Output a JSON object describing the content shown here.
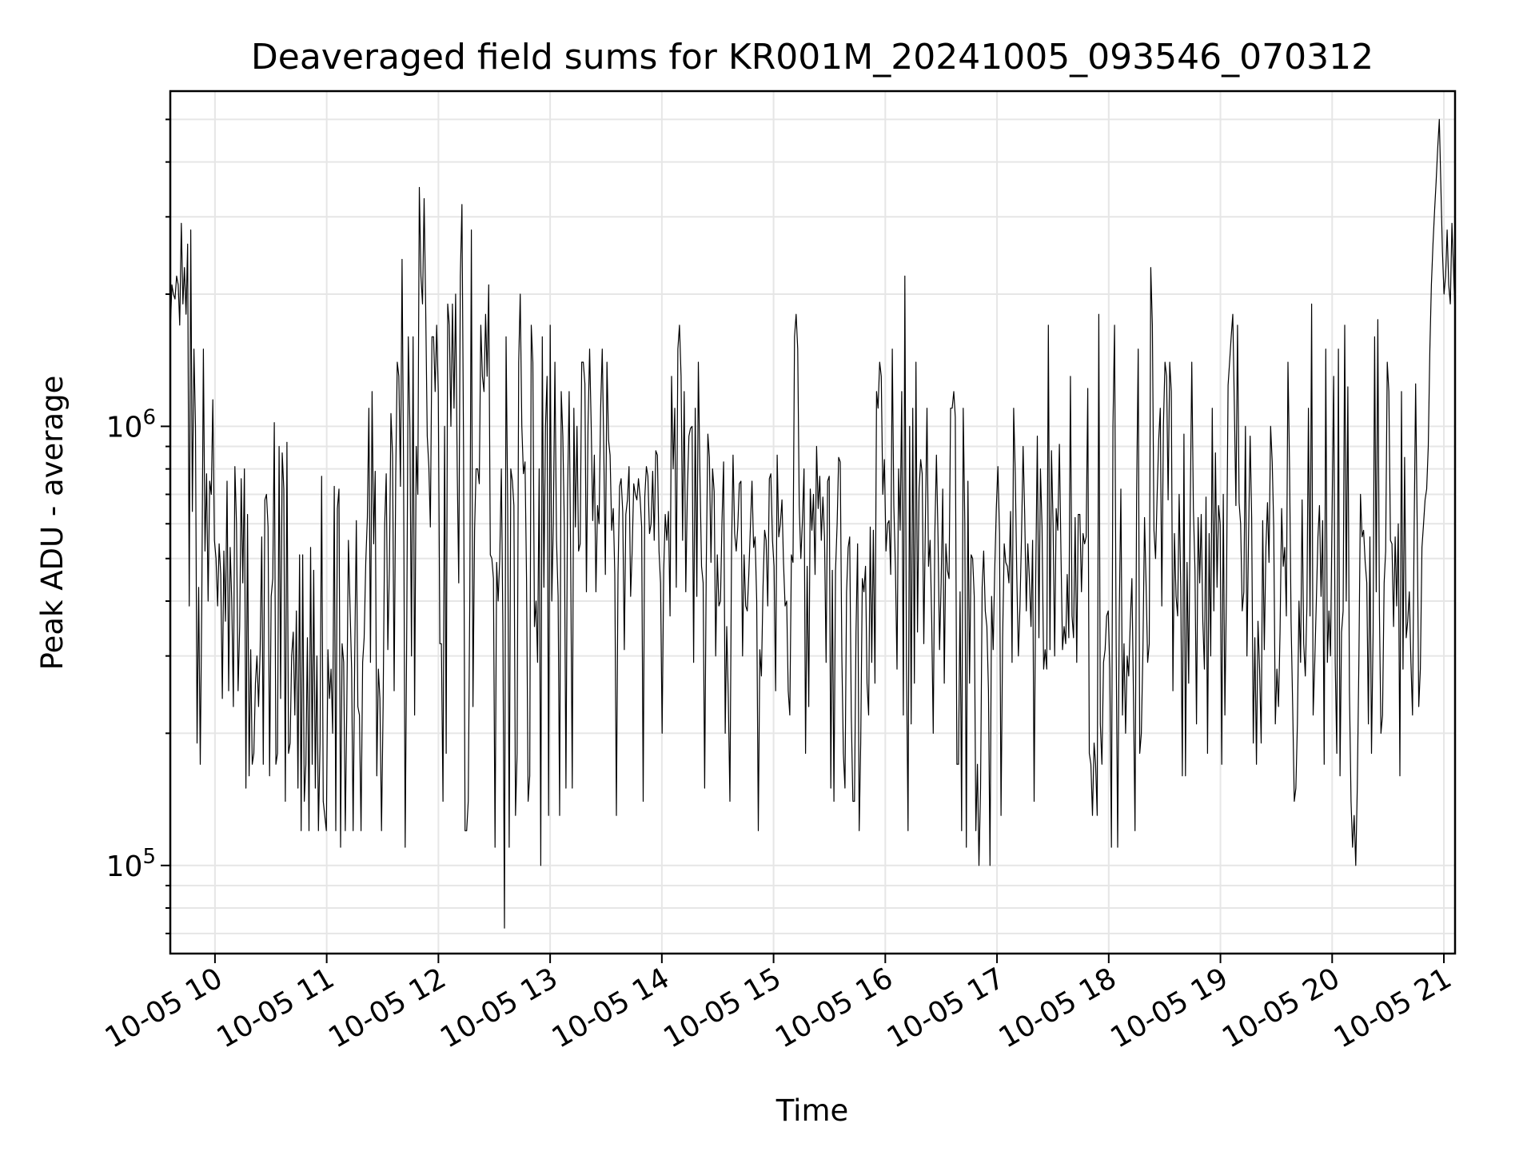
{
  "chart_data": {
    "type": "line",
    "title": "Deaveraged field sums for KR001M_20241005_093546_070312",
    "xlabel": "Time",
    "ylabel": "Peak ADU - average",
    "xscale": "time",
    "yscale": "log",
    "xlim": [
      "2024-10-05T09:36",
      "2024-10-05T21:06"
    ],
    "ylim": [
      63000,
      5800000
    ],
    "grid": true,
    "x_ticks": [
      "10-05 10",
      "10-05 11",
      "10-05 12",
      "10-05 13",
      "10-05 14",
      "10-05 15",
      "10-05 16",
      "10-05 17",
      "10-05 18",
      "10-05 19",
      "10-05 20",
      "10-05 21"
    ],
    "y_ticks": [
      {
        "value": 100000,
        "base": "10",
        "exp": "5"
      },
      {
        "value": 1000000,
        "base": "10",
        "exp": "6"
      }
    ],
    "series": [
      {
        "color": "#000000",
        "x_start": "2024-10-05T09:36",
        "x_end": "2024-10-05T21:06",
        "values": [
          1650000,
          2100000,
          2000000,
          1950000,
          2200000,
          2100000,
          1700000,
          2900000,
          1900000,
          2300000,
          1800000,
          2600000,
          390000,
          2800000,
          640000,
          1500000,
          1000000,
          190000,
          430000,
          170000,
          400000,
          1500000,
          520000,
          780000,
          400000,
          750000,
          700000,
          1150000,
          550000,
          500000,
          390000,
          540000,
          460000,
          240000,
          520000,
          360000,
          750000,
          250000,
          530000,
          400000,
          230000,
          810000,
          600000,
          250000,
          350000,
          760000,
          440000,
          800000,
          150000,
          630000,
          160000,
          310000,
          170000,
          180000,
          260000,
          300000,
          230000,
          310000,
          560000,
          170000,
          680000,
          700000,
          590000,
          160000,
          410000,
          450000,
          1020000,
          170000,
          180000,
          900000,
          240000,
          870000,
          720000,
          140000,
          920000,
          180000,
          190000,
          300000,
          340000,
          220000,
          380000,
          150000,
          510000,
          120000,
          510000,
          140000,
          170000,
          330000,
          120000,
          530000,
          170000,
          470000,
          150000,
          300000,
          120000,
          190000,
          770000,
          140000,
          130000,
          120000,
          310000,
          240000,
          280000,
          200000,
          730000,
          120000,
          650000,
          720000,
          110000,
          320000,
          290000,
          120000,
          230000,
          550000,
          390000,
          280000,
          120000,
          300000,
          610000,
          230000,
          220000,
          120000,
          290000,
          330000,
          490000,
          620000,
          1100000,
          290000,
          1200000,
          540000,
          790000,
          160000,
          280000,
          240000,
          120000,
          230000,
          600000,
          780000,
          310000,
          480000,
          1070000,
          860000,
          250000,
          780000,
          1400000,
          1300000,
          730000,
          2400000,
          790000,
          110000,
          350000,
          1600000,
          1000000,
          300000,
          1600000,
          220000,
          900000,
          700000,
          3500000,
          2200000,
          1900000,
          3300000,
          1900000,
          950000,
          810000,
          590000,
          1600000,
          1600000,
          1200000,
          1700000,
          1200000,
          320000,
          320000,
          140000,
          1000000,
          180000,
          1900000,
          1700000,
          1000000,
          1900000,
          1100000,
          2000000,
          800000,
          440000,
          2200000,
          3200000,
          900000,
          120000,
          120000,
          140000,
          400000,
          2800000,
          230000,
          580000,
          800000,
          800000,
          740000,
          1700000,
          1300000,
          1200000,
          1800000,
          1300000,
          2100000,
          510000,
          500000,
          450000,
          110000,
          490000,
          400000,
          500000,
          800000,
          350000,
          72000,
          1600000,
          660000,
          110000,
          800000,
          750000,
          660000,
          130000,
          180000,
          1400000,
          2000000,
          1000000,
          780000,
          830000,
          450000,
          140000,
          160000,
          1700000,
          1400000,
          350000,
          400000,
          290000,
          800000,
          100000,
          1600000,
          430000,
          1000000,
          1300000,
          130000,
          1700000,
          400000,
          600000,
          1400000,
          550000,
          410000,
          130000,
          1200000,
          950000,
          590000,
          150000,
          700000,
          1200000,
          500000,
          150000,
          1100000,
          590000,
          1000000,
          520000,
          540000,
          1400000,
          1400000,
          1250000,
          420000,
          1000000,
          1500000,
          1000000,
          610000,
          860000,
          420000,
          660000,
          600000,
          1100000,
          1500000,
          890000,
          460000,
          1400000,
          930000,
          860000,
          580000,
          650000,
          460000,
          130000,
          460000,
          730000,
          760000,
          640000,
          310000,
          630000,
          680000,
          810000,
          410000,
          520000,
          740000,
          700000,
          680000,
          760000,
          690000,
          590000,
          140000,
          690000,
          810000,
          770000,
          570000,
          600000,
          790000,
          550000,
          880000,
          860000,
          520000,
          440000,
          200000,
          470000,
          630000,
          550000,
          640000,
          370000,
          1300000,
          800000,
          1100000,
          430000,
          1500000,
          1700000,
          1300000,
          550000,
          1200000,
          420000,
          700000,
          950000,
          990000,
          1000000,
          290000,
          1100000,
          410000,
          1400000,
          770000,
          480000,
          440000,
          150000,
          480000,
          960000,
          850000,
          490000,
          800000,
          710000,
          300000,
          510000,
          390000,
          400000,
          610000,
          830000,
          200000,
          350000,
          240000,
          140000,
          520000,
          860000,
          570000,
          520000,
          590000,
          740000,
          750000,
          300000,
          510000,
          390000,
          380000,
          460000,
          590000,
          750000,
          530000,
          560000,
          400000,
          120000,
          310000,
          270000,
          430000,
          580000,
          550000,
          390000,
          760000,
          780000,
          550000,
          480000,
          250000,
          860000,
          560000,
          600000,
          680000,
          490000,
          390000,
          400000,
          250000,
          220000,
          510000,
          490000,
          1600000,
          1800000,
          1500000,
          660000,
          500000,
          610000,
          800000,
          180000,
          480000,
          230000,
          720000,
          580000,
          700000,
          460000,
          900000,
          650000,
          770000,
          550000,
          690000,
          560000,
          290000,
          750000,
          770000,
          150000,
          470000,
          140000,
          470000,
          600000,
          850000,
          830000,
          300000,
          180000,
          150000,
          420000,
          530000,
          560000,
          220000,
          140000,
          140000,
          340000,
          540000,
          120000,
          190000,
          450000,
          420000,
          480000,
          260000,
          220000,
          590000,
          290000,
          580000,
          260000,
          1200000,
          1100000,
          1400000,
          1300000,
          700000,
          840000,
          520000,
          600000,
          610000,
          460000,
          1500000,
          660000,
          480000,
          280000,
          800000,
          580000,
          1200000,
          220000,
          2200000,
          290000,
          120000,
          1000000,
          210000,
          1100000,
          260000,
          1400000,
          340000,
          720000,
          840000,
          780000,
          320000,
          610000,
          1100000,
          480000,
          550000,
          360000,
          200000,
          570000,
          860000,
          560000,
          310000,
          440000,
          720000,
          260000,
          540000,
          470000,
          450000,
          1100000,
          1100000,
          1200000,
          1050000,
          170000,
          170000,
          420000,
          120000,
          1100000,
          600000,
          110000,
          750000,
          260000,
          510000,
          500000,
          410000,
          120000,
          170000,
          100000,
          150000,
          430000,
          520000,
          380000,
          350000,
          250000,
          100000,
          410000,
          310000,
          470000,
          650000,
          810000,
          570000,
          130000,
          330000,
          540000,
          490000,
          480000,
          440000,
          640000,
          290000,
          1100000,
          780000,
          460000,
          300000,
          390000,
          570000,
          900000,
          630000,
          380000,
          540000,
          450000,
          350000,
          550000,
          140000,
          450000,
          950000,
          330000,
          800000,
          590000,
          280000,
          310000,
          280000,
          1700000,
          310000,
          880000,
          600000,
          300000,
          650000,
          580000,
          910000,
          510000,
          310000,
          350000,
          320000,
          460000,
          330000,
          1300000,
          370000,
          330000,
          620000,
          290000,
          630000,
          630000,
          420000,
          570000,
          540000,
          560000,
          1220000,
          180000,
          170000,
          130000,
          190000,
          170000,
          130000,
          1800000,
          210000,
          170000,
          290000,
          310000,
          370000,
          380000,
          280000,
          110000,
          1000000,
          1700000,
          320000,
          110000,
          370000,
          720000,
          220000,
          320000,
          200000,
          300000,
          270000,
          360000,
          450000,
          240000,
          120000,
          700000,
          1500000,
          180000,
          200000,
          310000,
          620000,
          440000,
          290000,
          320000,
          2300000,
          1700000,
          580000,
          500000,
          690000,
          930000,
          1100000,
          390000,
          1000000,
          1400000,
          1300000,
          680000,
          1400000,
          1200000,
          250000,
          570000,
          410000,
          370000,
          700000,
          430000,
          160000,
          960000,
          160000,
          490000,
          260000,
          630000,
          1400000,
          650000,
          470000,
          210000,
          620000,
          440000,
          630000,
          360000,
          280000,
          690000,
          180000,
          570000,
          300000,
          1100000,
          380000,
          870000,
          430000,
          660000,
          600000,
          170000,
          700000,
          220000,
          430000,
          1240000,
          1400000,
          1600000,
          1800000,
          1100000,
          660000,
          1700000,
          670000,
          600000,
          380000,
          420000,
          1000000,
          300000,
          560000,
          950000,
          620000,
          190000,
          330000,
          170000,
          360000,
          280000,
          190000,
          610000,
          310000,
          530000,
          670000,
          490000,
          1000000,
          830000,
          590000,
          210000,
          280000,
          230000,
          340000,
          650000,
          480000,
          530000,
          370000,
          1400000,
          800000,
          360000,
          230000,
          140000,
          150000,
          210000,
          400000,
          290000,
          680000,
          320000,
          270000,
          390000,
          1100000,
          370000,
          1900000,
          220000,
          290000,
          400000,
          560000,
          660000,
          410000,
          610000,
          170000,
          1500000,
          290000,
          380000,
          300000,
          640000,
          1300000,
          290000,
          180000,
          1500000,
          160000,
          340000,
          380000,
          1700000,
          400000,
          1230000,
          250000,
          140000,
          110000,
          130000,
          100000,
          150000,
          290000,
          700000,
          560000,
          580000,
          490000,
          440000,
          210000,
          560000,
          180000,
          340000,
          1600000,
          420000,
          1750000,
          380000,
          200000,
          220000,
          440000,
          520000,
          1400000,
          1200000,
          550000,
          540000,
          350000,
          560000,
          390000,
          600000,
          160000,
          1200000,
          280000,
          850000,
          330000,
          360000,
          420000,
          290000,
          220000,
          550000,
          1250000,
          580000,
          230000,
          280000,
          530000,
          600000,
          680000,
          720000,
          900000,
          1500000,
          2100000,
          2600000,
          3100000,
          3600000,
          4300000,
          5000000,
          3500000,
          2500000,
          2000000,
          2200000,
          2800000,
          2100000,
          1900000,
          2900000,
          2300000,
          1800000
        ]
      }
    ]
  }
}
